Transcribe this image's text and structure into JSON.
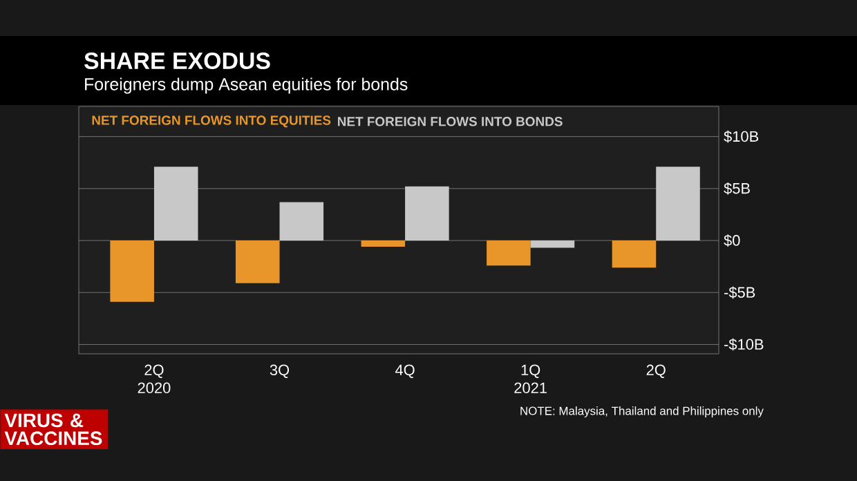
{
  "chart_data": {
    "type": "bar",
    "title": "SHARE EXODUS",
    "subtitle": "Foreigners dump Asean equities for bonds",
    "categories": [
      "2Q 2020",
      "3Q",
      "4Q",
      "1Q 2021",
      "2Q"
    ],
    "series": [
      {
        "name": "NET FOREIGN FLOWS INTO EQUITIES",
        "color": "#e8962a",
        "values": [
          -5.9,
          -4.1,
          -0.6,
          -2.4,
          -2.6
        ]
      },
      {
        "name": "NET FOREIGN FLOWS INTO BONDS",
        "color": "#c8c8c8",
        "values": [
          7.1,
          3.7,
          5.2,
          -0.7,
          7.1
        ]
      }
    ],
    "ylim": [
      -10.9,
      12.9
    ],
    "yticks": [
      {
        "value": -10,
        "label": "-$10B"
      },
      {
        "value": -5,
        "label": "-$5B"
      },
      {
        "value": 0,
        "label": "$0"
      },
      {
        "value": 5,
        "label": "$5B"
      },
      {
        "value": 10,
        "label": "$10B"
      }
    ],
    "grid": "y",
    "legend": "top left",
    "annotations": [
      "NOTE:  Malaysia, Thailand and Philippines only",
      "VIRUS & VACCINES"
    ]
  }
}
